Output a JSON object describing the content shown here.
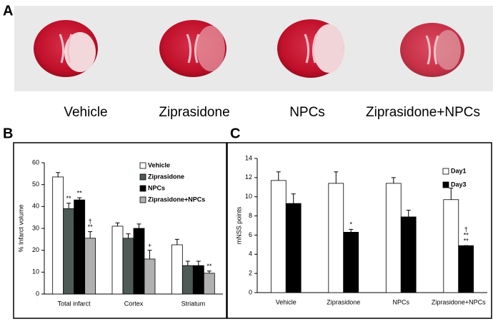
{
  "panel_a": {
    "label": "A",
    "images": [
      "Vehicle",
      "Ziprasidone",
      "NPCs",
      "Ziprasidone+NPCs"
    ]
  },
  "chart_data": [
    {
      "type": "bar",
      "panel_label": "B",
      "y_label": "% Infarct volume",
      "categories": [
        "Total infarct",
        "Cortex",
        "Striatum"
      ],
      "ylim": [
        0,
        60
      ],
      "yticks": [
        0,
        10,
        20,
        30,
        40,
        50,
        60
      ],
      "series": [
        {
          "name": "Vehicle",
          "color": "#ffffff",
          "values": [
            53.5,
            31,
            22.5
          ],
          "errors": [
            2,
            1.5,
            2.5
          ],
          "notes": [
            null,
            null,
            null
          ]
        },
        {
          "name": "Ziprasidone",
          "color": "#4d5a55",
          "values": [
            39,
            25.5,
            13
          ],
          "errors": [
            2.5,
            2,
            2
          ],
          "notes": [
            [
              "**"
            ],
            null,
            null
          ]
        },
        {
          "name": "NPCs",
          "color": "#000000",
          "values": [
            43,
            30,
            13
          ],
          "errors": [
            1,
            2,
            2
          ],
          "notes": [
            [
              "**"
            ],
            null,
            null
          ]
        },
        {
          "name": "Ziprasidone+NPCs",
          "color": "#b0b0b0",
          "values": [
            25.5,
            16,
            9.5
          ],
          "errors": [
            3,
            4,
            1
          ],
          "notes": [
            [
              "†",
              "**"
            ],
            [
              "+"
            ],
            [
              "**"
            ]
          ]
        }
      ]
    },
    {
      "type": "bar",
      "panel_label": "C",
      "y_label": "mNSS points",
      "categories": [
        "Vehicle",
        "Ziprasidone",
        "NPCs",
        "Ziprasidone+NPCs"
      ],
      "ylim": [
        0,
        14
      ],
      "yticks": [
        0,
        2,
        4,
        6,
        8,
        10,
        12,
        14
      ],
      "series": [
        {
          "name": "Day1",
          "color": "#ffffff",
          "values": [
            11.7,
            11.4,
            11.4,
            9.7
          ],
          "errors": [
            0.9,
            1.2,
            0.6,
            1.2
          ],
          "notes": [
            null,
            null,
            null,
            null
          ]
        },
        {
          "name": "Day3",
          "color": "#000000",
          "values": [
            9.3,
            6.3,
            7.9,
            4.9
          ],
          "errors": [
            1,
            0.3,
            0.7,
            0
          ],
          "notes": [
            null,
            [
              "*"
            ],
            null,
            [
              "†",
              "**",
              "**"
            ]
          ]
        }
      ]
    }
  ]
}
